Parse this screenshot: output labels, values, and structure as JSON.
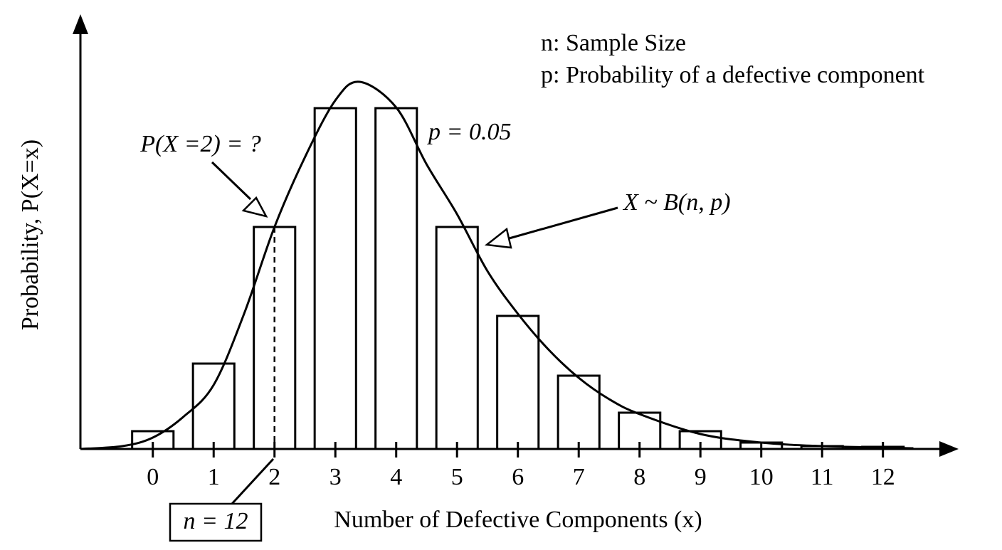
{
  "chart_data": {
    "type": "bar",
    "xlabel": "Number of Defective Components (x)",
    "ylabel": "Probability, P(X=x)",
    "x": [
      0,
      1,
      2,
      3,
      4,
      5,
      6,
      7,
      8,
      9,
      10,
      11,
      12
    ],
    "values": [
      0.025,
      0.12,
      0.312,
      0.479,
      0.479,
      0.312,
      0.187,
      0.103,
      0.051,
      0.025,
      0.009,
      0.004,
      0.003
    ],
    "color": "#ffffff",
    "xlim": [
      -1.19,
      13.22
    ],
    "ylim": [
      0,
      0.61
    ],
    "xticks": [
      0,
      1,
      2,
      3,
      4,
      5,
      6,
      7,
      8,
      9,
      10,
      11,
      12
    ],
    "curve": {
      "x": [
        -1.19,
        -0.5,
        0,
        0.5,
        1,
        1.5,
        2,
        2.5,
        3,
        3.4,
        4,
        4.5,
        5,
        5.5,
        6,
        6.5,
        7,
        7.5,
        8,
        9,
        10,
        11,
        12.5
      ],
      "values": [
        0,
        0.004,
        0.016,
        0.045,
        0.09,
        0.19,
        0.312,
        0.41,
        0.49,
        0.516,
        0.48,
        0.4,
        0.33,
        0.25,
        0.19,
        0.14,
        0.1,
        0.07,
        0.049,
        0.021,
        0.009,
        0.004,
        0.001
      ]
    },
    "legend": [
      "n: Sample Size",
      "p: Probability of a defective component"
    ],
    "annotations": {
      "question": "P(X =2) = ?",
      "p_value": "p = 0.05",
      "distribution": "X ~ B(n, p)",
      "n_value": "n = 12"
    }
  }
}
